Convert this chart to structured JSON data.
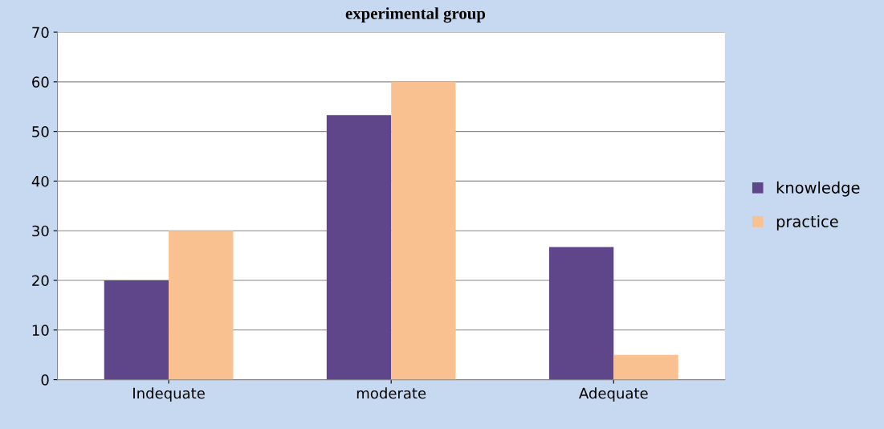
{
  "chart_data": {
    "type": "bar",
    "title": "experimental group",
    "categories": [
      "Indequate",
      "moderate",
      "Adequate"
    ],
    "series": [
      {
        "name": "knowledge",
        "color": "#5f4589",
        "values": [
          20,
          53.3,
          26.7
        ]
      },
      {
        "name": "practice",
        "color": "#f9c090",
        "values": [
          30,
          60,
          5
        ]
      }
    ],
    "ylim": [
      0,
      70
    ],
    "yticks": [
      0,
      10,
      20,
      30,
      40,
      50,
      60,
      70
    ],
    "grid": "y",
    "legend": "right"
  }
}
